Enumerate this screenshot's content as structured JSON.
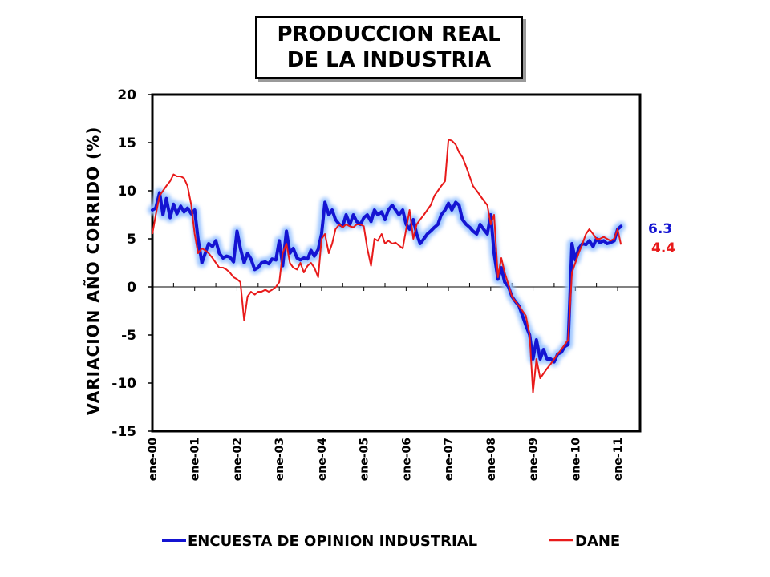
{
  "title": {
    "line1": "PRODUCCION REAL",
    "line2": "DE LA INDUSTRIA"
  },
  "colors": {
    "blue": "#1414d2",
    "red": "#e81a1a",
    "glow": "#9ec6ff"
  },
  "chart_data": {
    "type": "line",
    "ylabel": "VARIACION AÑO CORRIDO (%)",
    "xlabel": "",
    "ylim": [
      -15,
      20
    ],
    "yticks": [
      "20",
      "15",
      "10",
      "5",
      "0",
      "-5",
      "-10",
      "-15"
    ],
    "xlim": [
      2000.0,
      2011.25
    ],
    "xticks": [
      "ene-00",
      "ene-01",
      "ene-02",
      "ene-03",
      "ene-04",
      "ene-05",
      "ene-06",
      "ene-07",
      "ene-08",
      "ene-09",
      "ene-10",
      "ene-11"
    ],
    "grid": false,
    "legend_position": "bottom",
    "end_labels": [
      {
        "series": "ENCUESTA DE OPINION INDUSTRIAL",
        "text": "6.3"
      },
      {
        "series": "DANE",
        "text": "4.4"
      }
    ],
    "series": [
      {
        "name": "ENCUESTA DE OPINION INDUSTRIAL",
        "color": "#1414d2",
        "points": [
          [
            2000.0,
            8.0
          ],
          [
            2000.08,
            8.2
          ],
          [
            2000.17,
            9.8
          ],
          [
            2000.25,
            7.5
          ],
          [
            2000.33,
            9.2
          ],
          [
            2000.42,
            7.2
          ],
          [
            2000.5,
            8.6
          ],
          [
            2000.58,
            7.6
          ],
          [
            2000.67,
            8.4
          ],
          [
            2000.75,
            7.8
          ],
          [
            2000.83,
            8.2
          ],
          [
            2000.92,
            7.6
          ],
          [
            2001.0,
            8.0
          ],
          [
            2001.08,
            5.0
          ],
          [
            2001.17,
            2.5
          ],
          [
            2001.25,
            3.5
          ],
          [
            2001.33,
            4.5
          ],
          [
            2001.42,
            4.2
          ],
          [
            2001.5,
            4.8
          ],
          [
            2001.58,
            3.5
          ],
          [
            2001.67,
            3.0
          ],
          [
            2001.75,
            3.2
          ],
          [
            2001.83,
            3.1
          ],
          [
            2001.92,
            2.6
          ],
          [
            2002.0,
            5.8
          ],
          [
            2002.08,
            4.0
          ],
          [
            2002.17,
            2.5
          ],
          [
            2002.25,
            3.5
          ],
          [
            2002.33,
            2.9
          ],
          [
            2002.42,
            1.8
          ],
          [
            2002.5,
            2.0
          ],
          [
            2002.58,
            2.5
          ],
          [
            2002.67,
            2.6
          ],
          [
            2002.75,
            2.4
          ],
          [
            2002.83,
            2.9
          ],
          [
            2002.92,
            2.8
          ],
          [
            2003.0,
            4.8
          ],
          [
            2003.08,
            2.2
          ],
          [
            2003.17,
            5.8
          ],
          [
            2003.25,
            3.5
          ],
          [
            2003.33,
            4.0
          ],
          [
            2003.42,
            3.0
          ],
          [
            2003.5,
            2.8
          ],
          [
            2003.58,
            3.0
          ],
          [
            2003.67,
            2.9
          ],
          [
            2003.75,
            3.8
          ],
          [
            2003.83,
            3.2
          ],
          [
            2003.92,
            3.9
          ],
          [
            2004.0,
            5.5
          ],
          [
            2004.08,
            8.8
          ],
          [
            2004.17,
            7.5
          ],
          [
            2004.25,
            8.0
          ],
          [
            2004.33,
            7.0
          ],
          [
            2004.42,
            6.5
          ],
          [
            2004.5,
            6.3
          ],
          [
            2004.58,
            7.5
          ],
          [
            2004.67,
            6.5
          ],
          [
            2004.75,
            7.5
          ],
          [
            2004.83,
            6.8
          ],
          [
            2004.92,
            6.5
          ],
          [
            2005.0,
            7.2
          ],
          [
            2005.08,
            7.5
          ],
          [
            2005.17,
            6.8
          ],
          [
            2005.25,
            8.0
          ],
          [
            2005.33,
            7.5
          ],
          [
            2005.42,
            7.8
          ],
          [
            2005.5,
            7.0
          ],
          [
            2005.58,
            8.0
          ],
          [
            2005.67,
            8.5
          ],
          [
            2005.75,
            8.0
          ],
          [
            2005.83,
            7.5
          ],
          [
            2005.92,
            8.0
          ],
          [
            2006.0,
            6.5
          ],
          [
            2006.08,
            6.0
          ],
          [
            2006.17,
            7.0
          ],
          [
            2006.25,
            5.5
          ],
          [
            2006.33,
            4.5
          ],
          [
            2006.42,
            5.0
          ],
          [
            2006.5,
            5.5
          ],
          [
            2006.58,
            5.8
          ],
          [
            2006.67,
            6.2
          ],
          [
            2006.75,
            6.5
          ],
          [
            2006.83,
            7.5
          ],
          [
            2006.92,
            8.0
          ],
          [
            2007.0,
            8.7
          ],
          [
            2007.08,
            8.0
          ],
          [
            2007.17,
            8.8
          ],
          [
            2007.25,
            8.5
          ],
          [
            2007.33,
            7.0
          ],
          [
            2007.42,
            6.5
          ],
          [
            2007.5,
            6.2
          ],
          [
            2007.58,
            5.8
          ],
          [
            2007.67,
            5.5
          ],
          [
            2007.75,
            6.5
          ],
          [
            2007.83,
            6.0
          ],
          [
            2007.92,
            5.5
          ],
          [
            2008.0,
            7.5
          ],
          [
            2008.08,
            3.5
          ],
          [
            2008.17,
            0.8
          ],
          [
            2008.25,
            2.0
          ],
          [
            2008.33,
            0.5
          ],
          [
            2008.42,
            0.0
          ],
          [
            2008.5,
            -1.0
          ],
          [
            2008.58,
            -1.5
          ],
          [
            2008.67,
            -2.0
          ],
          [
            2008.75,
            -3.0
          ],
          [
            2008.83,
            -4.0
          ],
          [
            2008.92,
            -5.0
          ],
          [
            2009.0,
            -7.5
          ],
          [
            2009.08,
            -5.5
          ],
          [
            2009.17,
            -7.5
          ],
          [
            2009.25,
            -6.5
          ],
          [
            2009.33,
            -7.5
          ],
          [
            2009.42,
            -7.5
          ],
          [
            2009.5,
            -7.8
          ],
          [
            2009.58,
            -7.0
          ],
          [
            2009.67,
            -6.8
          ],
          [
            2009.75,
            -6.2
          ],
          [
            2009.83,
            -6.0
          ],
          [
            2009.92,
            4.5
          ],
          [
            2010.0,
            2.8
          ],
          [
            2010.08,
            4.0
          ],
          [
            2010.17,
            4.5
          ],
          [
            2010.25,
            4.4
          ],
          [
            2010.33,
            4.8
          ],
          [
            2010.42,
            4.2
          ],
          [
            2010.5,
            5.0
          ],
          [
            2010.58,
            4.6
          ],
          [
            2010.67,
            4.8
          ],
          [
            2010.75,
            4.5
          ],
          [
            2010.83,
            4.6
          ],
          [
            2010.92,
            4.8
          ],
          [
            2011.0,
            6.0
          ],
          [
            2011.08,
            6.3
          ]
        ]
      },
      {
        "name": "DANE",
        "color": "#e81a1a",
        "points": [
          [
            2000.0,
            5.5
          ],
          [
            2000.08,
            7.5
          ],
          [
            2000.17,
            9.5
          ],
          [
            2000.25,
            10.0
          ],
          [
            2000.33,
            10.5
          ],
          [
            2000.42,
            11.0
          ],
          [
            2000.5,
            11.7
          ],
          [
            2000.58,
            11.5
          ],
          [
            2000.67,
            11.5
          ],
          [
            2000.75,
            11.3
          ],
          [
            2000.83,
            10.5
          ],
          [
            2000.92,
            8.5
          ],
          [
            2001.0,
            5.5
          ],
          [
            2001.08,
            3.5
          ],
          [
            2001.17,
            4.0
          ],
          [
            2001.25,
            3.8
          ],
          [
            2001.33,
            3.5
          ],
          [
            2001.42,
            3.0
          ],
          [
            2001.5,
            2.5
          ],
          [
            2001.58,
            2.0
          ],
          [
            2001.67,
            2.0
          ],
          [
            2001.75,
            1.8
          ],
          [
            2001.83,
            1.5
          ],
          [
            2001.92,
            1.0
          ],
          [
            2002.0,
            0.8
          ],
          [
            2002.08,
            0.5
          ],
          [
            2002.17,
            -3.5
          ],
          [
            2002.25,
            -1.0
          ],
          [
            2002.33,
            -0.5
          ],
          [
            2002.42,
            -0.8
          ],
          [
            2002.5,
            -0.5
          ],
          [
            2002.58,
            -0.5
          ],
          [
            2002.67,
            -0.3
          ],
          [
            2002.75,
            -0.5
          ],
          [
            2002.83,
            -0.3
          ],
          [
            2002.92,
            0.0
          ],
          [
            2003.0,
            0.5
          ],
          [
            2003.08,
            3.5
          ],
          [
            2003.17,
            4.5
          ],
          [
            2003.25,
            2.5
          ],
          [
            2003.33,
            2.0
          ],
          [
            2003.42,
            1.8
          ],
          [
            2003.5,
            2.5
          ],
          [
            2003.58,
            1.5
          ],
          [
            2003.67,
            2.2
          ],
          [
            2003.75,
            2.5
          ],
          [
            2003.83,
            2.0
          ],
          [
            2003.92,
            1.0
          ],
          [
            2004.0,
            5.0
          ],
          [
            2004.08,
            5.5
          ],
          [
            2004.17,
            3.5
          ],
          [
            2004.25,
            4.5
          ],
          [
            2004.33,
            6.0
          ],
          [
            2004.42,
            6.5
          ],
          [
            2004.5,
            6.2
          ],
          [
            2004.58,
            6.5
          ],
          [
            2004.67,
            6.3
          ],
          [
            2004.75,
            6.2
          ],
          [
            2004.83,
            6.5
          ],
          [
            2004.92,
            6.5
          ],
          [
            2005.0,
            6.3
          ],
          [
            2005.08,
            4.0
          ],
          [
            2005.17,
            2.2
          ],
          [
            2005.25,
            5.0
          ],
          [
            2005.33,
            4.8
          ],
          [
            2005.42,
            5.5
          ],
          [
            2005.5,
            4.5
          ],
          [
            2005.58,
            4.8
          ],
          [
            2005.67,
            4.5
          ],
          [
            2005.75,
            4.6
          ],
          [
            2005.83,
            4.3
          ],
          [
            2005.92,
            4.0
          ],
          [
            2006.0,
            6.0
          ],
          [
            2006.08,
            8.0
          ],
          [
            2006.17,
            5.0
          ],
          [
            2006.25,
            6.5
          ],
          [
            2006.33,
            7.0
          ],
          [
            2006.42,
            7.5
          ],
          [
            2006.5,
            8.0
          ],
          [
            2006.58,
            8.5
          ],
          [
            2006.67,
            9.5
          ],
          [
            2006.75,
            10.0
          ],
          [
            2006.83,
            10.5
          ],
          [
            2006.92,
            11.0
          ],
          [
            2007.0,
            15.3
          ],
          [
            2007.08,
            15.2
          ],
          [
            2007.17,
            14.8
          ],
          [
            2007.25,
            14.0
          ],
          [
            2007.33,
            13.5
          ],
          [
            2007.42,
            12.5
          ],
          [
            2007.5,
            11.5
          ],
          [
            2007.58,
            10.5
          ],
          [
            2007.67,
            10.0
          ],
          [
            2007.75,
            9.5
          ],
          [
            2007.83,
            9.0
          ],
          [
            2007.92,
            8.5
          ],
          [
            2008.0,
            6.5
          ],
          [
            2008.08,
            7.5
          ],
          [
            2008.17,
            1.0
          ],
          [
            2008.25,
            3.0
          ],
          [
            2008.33,
            1.5
          ],
          [
            2008.42,
            0.2
          ],
          [
            2008.5,
            -1.0
          ],
          [
            2008.58,
            -1.5
          ],
          [
            2008.67,
            -2.0
          ],
          [
            2008.75,
            -2.5
          ],
          [
            2008.83,
            -3.0
          ],
          [
            2008.92,
            -5.0
          ],
          [
            2009.0,
            -11.0
          ],
          [
            2009.08,
            -7.5
          ],
          [
            2009.17,
            -9.5
          ],
          [
            2009.25,
            -9.0
          ],
          [
            2009.33,
            -8.5
          ],
          [
            2009.42,
            -8.0
          ],
          [
            2009.5,
            -7.5
          ],
          [
            2009.58,
            -7.0
          ],
          [
            2009.67,
            -6.5
          ],
          [
            2009.75,
            -6.0
          ],
          [
            2009.83,
            -5.5
          ],
          [
            2009.92,
            1.5
          ],
          [
            2010.0,
            2.5
          ],
          [
            2010.08,
            3.5
          ],
          [
            2010.17,
            4.5
          ],
          [
            2010.25,
            5.5
          ],
          [
            2010.33,
            6.0
          ],
          [
            2010.42,
            5.5
          ],
          [
            2010.5,
            5.0
          ],
          [
            2010.58,
            5.0
          ],
          [
            2010.67,
            5.2
          ],
          [
            2010.75,
            5.0
          ],
          [
            2010.83,
            4.8
          ],
          [
            2010.92,
            5.0
          ],
          [
            2011.0,
            6.0
          ],
          [
            2011.08,
            4.4
          ]
        ]
      }
    ]
  }
}
